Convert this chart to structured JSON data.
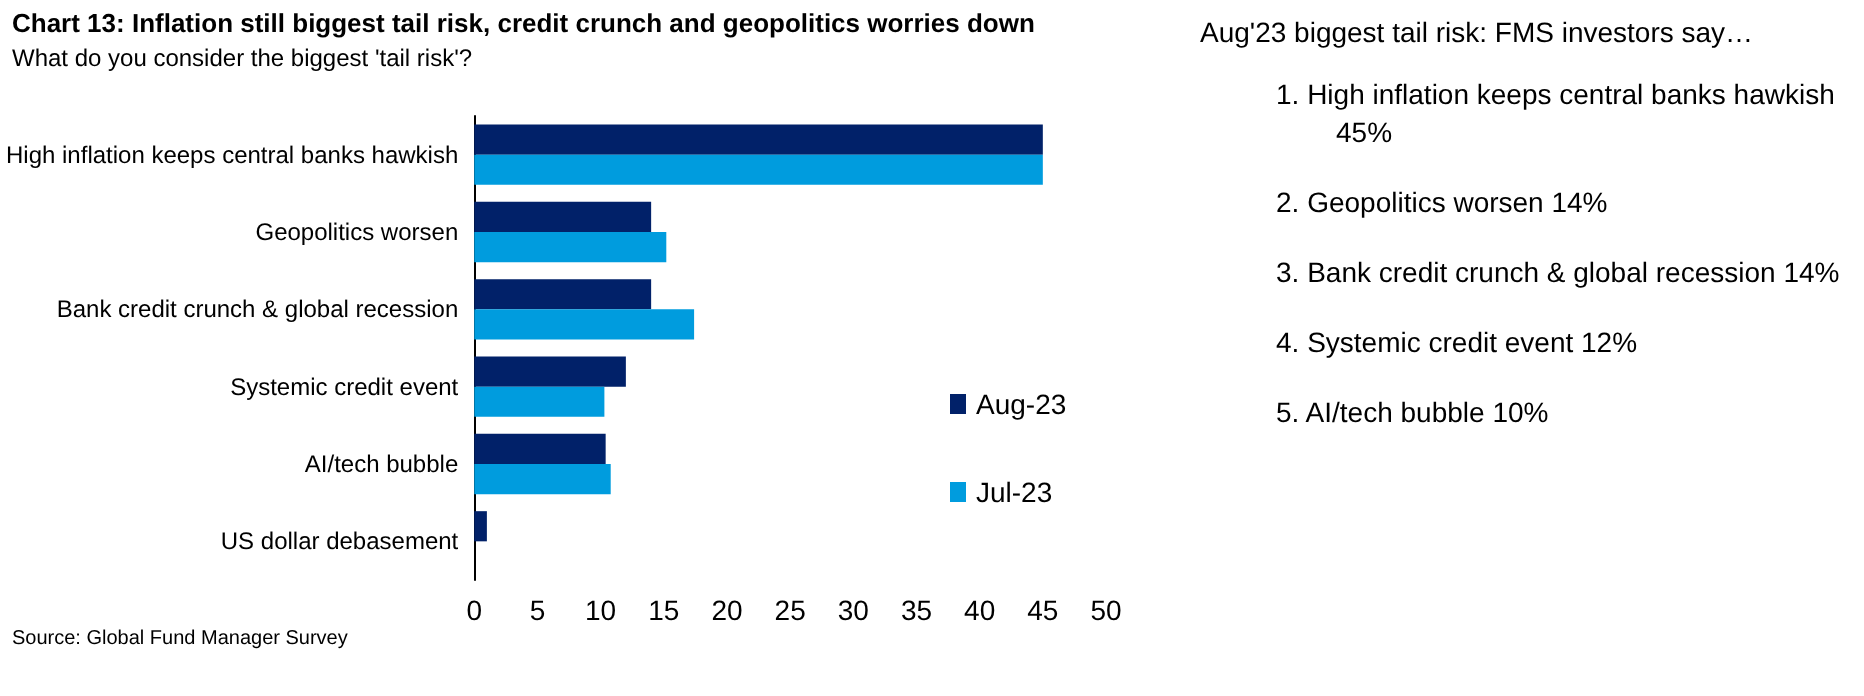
{
  "chart_data": {
    "type": "bar",
    "orientation": "horizontal",
    "title": "Chart 13: Inflation still biggest tail risk, credit crunch and geopolitics worries down",
    "subtitle": "What do you consider the biggest 'tail risk'?",
    "categories": [
      "High inflation keeps central banks hawkish",
      "Geopolitics worsen",
      "Bank credit crunch & global recession",
      "Systemic credit event",
      "AI/tech bubble",
      "US dollar debasement"
    ],
    "series": [
      {
        "name": "Aug-23",
        "color": "#012169",
        "values": [
          45,
          14,
          14,
          12,
          10.4,
          1
        ]
      },
      {
        "name": "Jul-23",
        "color": "#009cde",
        "values": [
          45,
          15.2,
          17.4,
          10.3,
          10.8,
          0
        ]
      }
    ],
    "xlim": [
      0,
      50
    ],
    "xticks": [
      0,
      5,
      10,
      15,
      20,
      25,
      30,
      35,
      40,
      45,
      50
    ],
    "grid": false,
    "legend": "right",
    "annotations": [
      "Aug'23 biggest tail risk: FMS investors say…",
      "1. High inflation keeps central banks hawkish 45%",
      "2. Geopolitics worsen 14%",
      "3. Bank credit crunch & global recession 14%",
      "4. Systemic credit event 12%",
      "5. AI/tech bubble 10%",
      "Source: Global Fund Manager Survey"
    ]
  }
}
